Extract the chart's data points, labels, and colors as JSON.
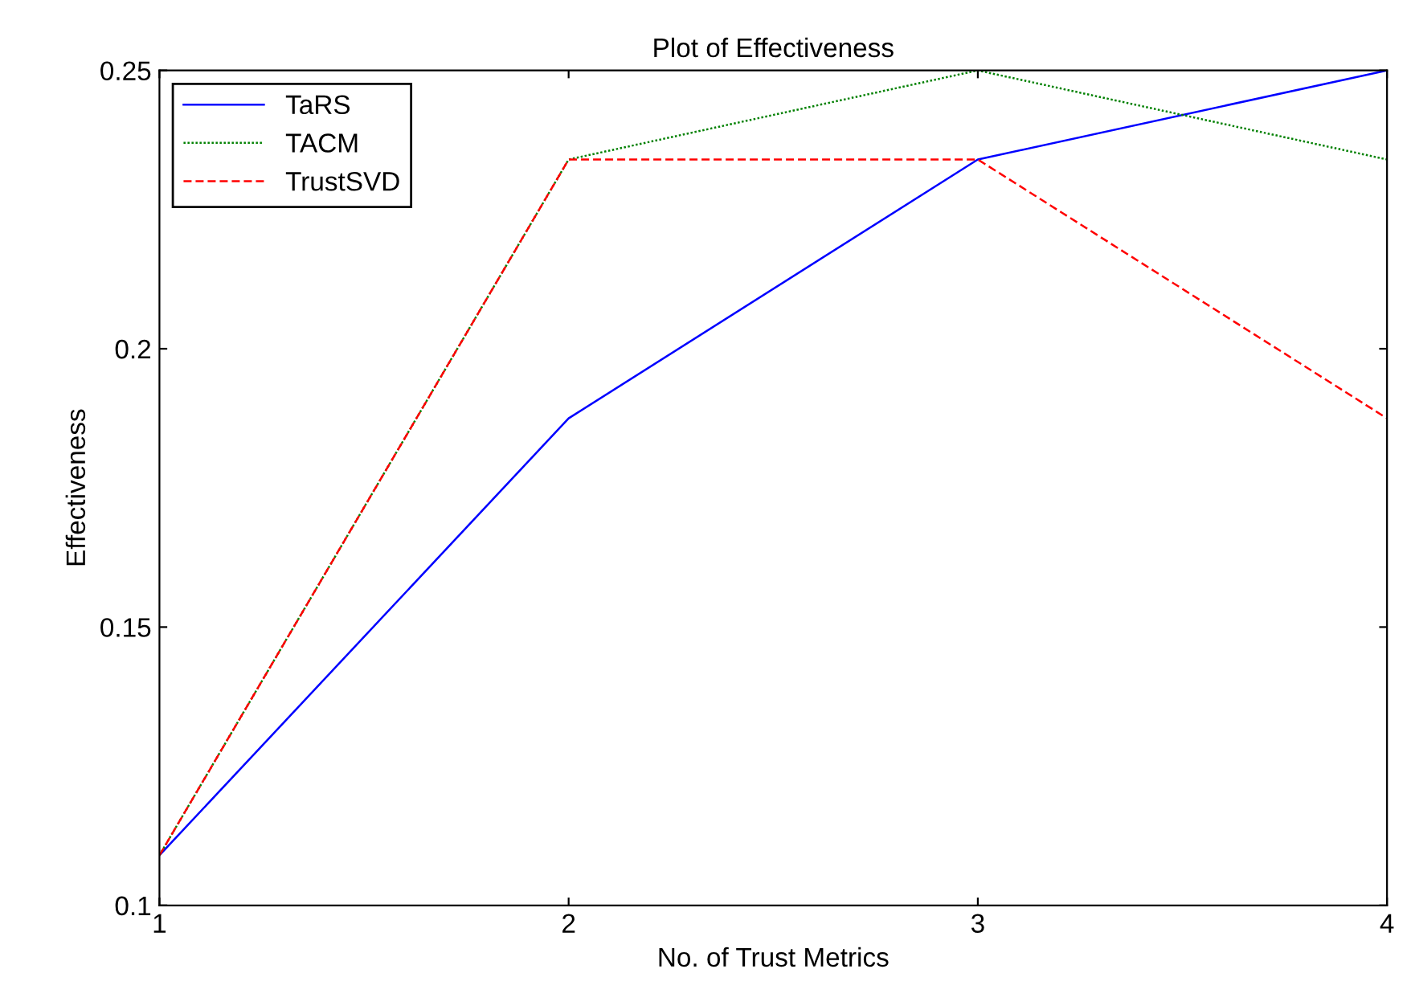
{
  "chart_data": {
    "type": "line",
    "title": "Plot of Effectiveness",
    "xlabel": "No. of Trust Metrics",
    "ylabel": "Effectiveness",
    "x": [
      1,
      2,
      3,
      4
    ],
    "series": [
      {
        "name": "TaRS",
        "color": "#0000ff",
        "line_style": "solid",
        "values": [
          0.109,
          0.1875,
          0.234,
          0.25
        ]
      },
      {
        "name": "TACM",
        "color": "#008000",
        "line_style": "dotted",
        "values": [
          0.109,
          0.234,
          0.25,
          0.234
        ]
      },
      {
        "name": "TrustSVD",
        "color": "#ff0000",
        "line_style": "dashed",
        "values": [
          0.109,
          0.234,
          0.234,
          0.1875
        ]
      }
    ],
    "xlim": [
      1,
      4
    ],
    "ylim": [
      0.1,
      0.25
    ],
    "xticks": [
      1,
      2,
      3,
      4
    ],
    "yticks": [
      0.1,
      0.15,
      0.2,
      0.25
    ],
    "grid": false,
    "legend": "top left",
    "marker": "none"
  }
}
